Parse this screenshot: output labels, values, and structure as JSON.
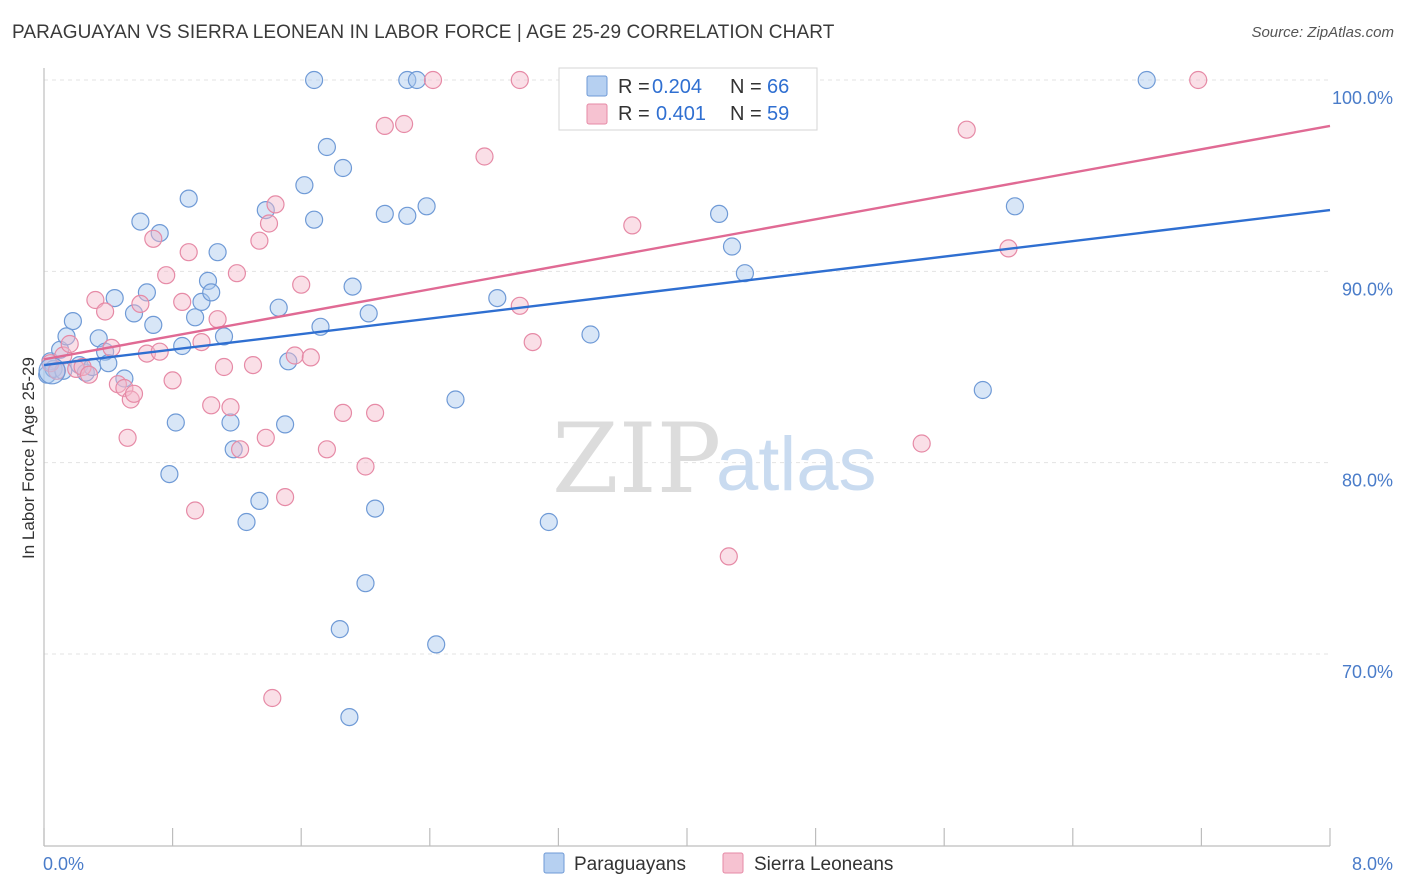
{
  "header": {
    "title": "PARAGUAYAN VS SIERRA LEONEAN IN LABOR FORCE | AGE 25-29 CORRELATION CHART",
    "source": "Source: ZipAtlas.com"
  },
  "watermark": {
    "zip": "ZIP",
    "atlas": "atlas"
  },
  "legend": {
    "rows": [
      {
        "r_label": "R = ",
        "r_value": "0.204",
        "n_label": "N = ",
        "n_value": "66",
        "color": "#a9c8ee"
      },
      {
        "r_label": "R = ",
        "r_value": "0.401",
        "n_label": "N = ",
        "n_value": "59",
        "color": "#f5b7c9"
      }
    ]
  },
  "bottom_legend": [
    "Paraguayans",
    "Sierra Leoneans"
  ],
  "chart_data": {
    "type": "scatter",
    "title": "PARAGUAYAN VS SIERRA LEONEAN IN LABOR FORCE | AGE 25-29 CORRELATION CHART",
    "xlabel": "",
    "ylabel": "In Labor Force | Age 25-29",
    "xlim": [
      0.0,
      8.0
    ],
    "ylim": [
      60.0,
      101.0
    ],
    "x_tick_labels": [
      "0.0%",
      "8.0%"
    ],
    "y_ticks": [
      70.0,
      80.0,
      90.0,
      100.0
    ],
    "y_tick_labels": [
      "70.0%",
      "80.0%",
      "90.0%",
      "100.0%"
    ],
    "grid": true,
    "legend_position": "top-center",
    "series": [
      {
        "name": "Paraguayans",
        "color": "#a9c8ee",
        "edge": "#6f9ad6",
        "line_color": "#2f6fd1",
        "r": 0.204,
        "n": 66,
        "trend": {
          "x": [
            0.0,
            8.0
          ],
          "y": [
            85.1,
            93.2
          ]
        },
        "points": [
          [
            0.02,
            84.6
          ],
          [
            0.04,
            85.3
          ],
          [
            0.06,
            84.9
          ],
          [
            0.1,
            85.9
          ],
          [
            0.14,
            86.6
          ],
          [
            0.18,
            87.4
          ],
          [
            0.22,
            85.1
          ],
          [
            0.26,
            84.7
          ],
          [
            0.3,
            85.0
          ],
          [
            0.34,
            86.5
          ],
          [
            0.38,
            85.8
          ],
          [
            0.44,
            88.6
          ],
          [
            0.5,
            84.4
          ],
          [
            0.56,
            87.8
          ],
          [
            0.6,
            92.6
          ],
          [
            0.64,
            88.9
          ],
          [
            0.68,
            87.2
          ],
          [
            0.72,
            92.0
          ],
          [
            0.78,
            79.4
          ],
          [
            0.82,
            82.1
          ],
          [
            0.86,
            86.1
          ],
          [
            0.9,
            93.8
          ],
          [
            0.94,
            87.6
          ],
          [
            0.98,
            88.4
          ],
          [
            1.02,
            89.5
          ],
          [
            1.04,
            88.9
          ],
          [
            1.08,
            91.0
          ],
          [
            1.12,
            86.6
          ],
          [
            1.16,
            82.1
          ],
          [
            1.18,
            80.7
          ],
          [
            1.26,
            76.9
          ],
          [
            1.34,
            78.0
          ],
          [
            1.38,
            93.2
          ],
          [
            1.5,
            82.0
          ],
          [
            1.52,
            85.3
          ],
          [
            1.46,
            88.1
          ],
          [
            1.62,
            94.5
          ],
          [
            1.68,
            92.7
          ],
          [
            1.72,
            87.1
          ],
          [
            1.68,
            100.0
          ],
          [
            1.76,
            96.5
          ],
          [
            1.84,
            71.3
          ],
          [
            1.86,
            95.4
          ],
          [
            1.9,
            66.7
          ],
          [
            1.92,
            89.2
          ],
          [
            2.0,
            73.7
          ],
          [
            2.02,
            87.8
          ],
          [
            2.06,
            77.6
          ],
          [
            2.12,
            93.0
          ],
          [
            2.26,
            92.9
          ],
          [
            2.26,
            100.0
          ],
          [
            2.32,
            100.0
          ],
          [
            2.38,
            93.4
          ],
          [
            2.44,
            70.5
          ],
          [
            2.56,
            83.3
          ],
          [
            2.82,
            88.6
          ],
          [
            3.14,
            76.9
          ],
          [
            3.4,
            86.7
          ],
          [
            4.2,
            93.0
          ],
          [
            4.28,
            91.3
          ],
          [
            4.36,
            89.9
          ],
          [
            5.84,
            83.8
          ],
          [
            6.04,
            93.4
          ],
          [
            6.86,
            100.0
          ],
          [
            0.4,
            85.2
          ],
          [
            0.12,
            84.8
          ]
        ]
      },
      {
        "name": "Sierra Leoneans",
        "color": "#f5b7c9",
        "edge": "#e68aa6",
        "line_color": "#e06a94",
        "r": 0.401,
        "n": 59,
        "trend": {
          "x": [
            0.0,
            8.0
          ],
          "y": [
            85.4,
            97.6
          ]
        },
        "points": [
          [
            0.04,
            85.2
          ],
          [
            0.08,
            84.8
          ],
          [
            0.12,
            85.6
          ],
          [
            0.16,
            86.2
          ],
          [
            0.2,
            84.9
          ],
          [
            0.24,
            85.0
          ],
          [
            0.28,
            84.6
          ],
          [
            0.32,
            88.5
          ],
          [
            0.38,
            87.9
          ],
          [
            0.42,
            86.0
          ],
          [
            0.46,
            84.1
          ],
          [
            0.5,
            83.9
          ],
          [
            0.52,
            81.3
          ],
          [
            0.54,
            83.3
          ],
          [
            0.6,
            88.3
          ],
          [
            0.64,
            85.7
          ],
          [
            0.68,
            91.7
          ],
          [
            0.72,
            85.8
          ],
          [
            0.76,
            89.8
          ],
          [
            0.8,
            84.3
          ],
          [
            0.86,
            88.4
          ],
          [
            0.9,
            91.0
          ],
          [
            0.94,
            77.5
          ],
          [
            0.98,
            86.3
          ],
          [
            1.04,
            83.0
          ],
          [
            1.08,
            87.5
          ],
          [
            1.12,
            85.0
          ],
          [
            1.16,
            82.9
          ],
          [
            1.2,
            89.9
          ],
          [
            1.22,
            80.7
          ],
          [
            1.3,
            85.1
          ],
          [
            1.34,
            91.6
          ],
          [
            1.4,
            92.5
          ],
          [
            1.44,
            93.5
          ],
          [
            1.38,
            81.3
          ],
          [
            1.42,
            67.7
          ],
          [
            1.5,
            78.2
          ],
          [
            1.56,
            85.6
          ],
          [
            1.6,
            89.3
          ],
          [
            1.76,
            80.7
          ],
          [
            1.86,
            82.6
          ],
          [
            2.0,
            79.8
          ],
          [
            2.06,
            82.6
          ],
          [
            2.12,
            97.6
          ],
          [
            2.24,
            97.7
          ],
          [
            2.42,
            100.0
          ],
          [
            2.74,
            96.0
          ],
          [
            2.96,
            88.2
          ],
          [
            2.96,
            100.0
          ],
          [
            3.04,
            86.3
          ],
          [
            3.66,
            92.4
          ],
          [
            4.26,
            75.1
          ],
          [
            4.38,
            100.0
          ],
          [
            5.46,
            81.0
          ],
          [
            5.74,
            97.4
          ],
          [
            6.0,
            91.2
          ],
          [
            7.18,
            100.0
          ],
          [
            0.56,
            83.6
          ],
          [
            1.66,
            85.5
          ]
        ]
      }
    ]
  }
}
